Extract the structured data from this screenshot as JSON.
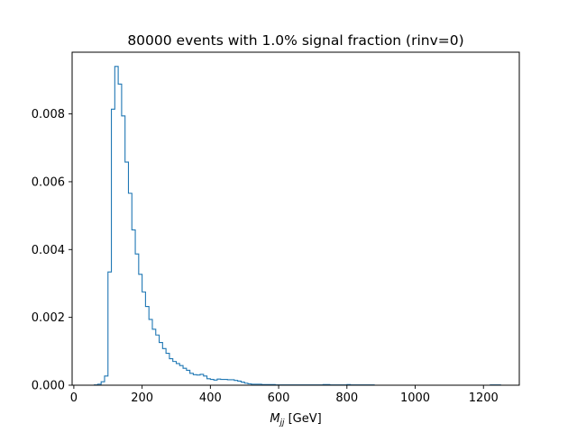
{
  "chart_data": {
    "type": "histogram",
    "title": "80000 events with 1.0% signal fraction (rinv=0)",
    "xlabel_var": "M",
    "xlabel_sub": "jj",
    "xlabel_unit": "[GeV]",
    "ylabel": "",
    "xlim": [
      -5,
      1305
    ],
    "ylim": [
      0,
      0.00982
    ],
    "x_ticks": [
      0,
      200,
      400,
      600,
      800,
      1000,
      1200
    ],
    "x_tick_labels": [
      "0",
      "200",
      "400",
      "600",
      "800",
      "1000",
      "1200"
    ],
    "y_ticks": [
      0.0,
      0.002,
      0.004,
      0.006,
      0.008
    ],
    "y_tick_labels": [
      "0.000",
      "0.002",
      "0.004",
      "0.006",
      "0.008"
    ],
    "grid": false,
    "legend": "none",
    "series": [
      {
        "color": "#1f77b4",
        "histtype": "step",
        "bin_edges": [
          60,
          70,
          80,
          90,
          100,
          110,
          120,
          130,
          140,
          150,
          160,
          170,
          180,
          190,
          200,
          210,
          220,
          230,
          240,
          250,
          260,
          270,
          280,
          290,
          300,
          310,
          320,
          330,
          340,
          350,
          360,
          370,
          380,
          390,
          400,
          410,
          420,
          430,
          440,
          450,
          460,
          470,
          480,
          490,
          500,
          510,
          520,
          530,
          540,
          550,
          560,
          570,
          580,
          590,
          600,
          610,
          620,
          630,
          640,
          650,
          660,
          670,
          680,
          690,
          700,
          710,
          720,
          730,
          740,
          750,
          760,
          770,
          780,
          790,
          800,
          810,
          820,
          830,
          840,
          850,
          860,
          870,
          880,
          890,
          900,
          910,
          920,
          930,
          940,
          950,
          960,
          970,
          980,
          990,
          1000,
          1010,
          1020,
          1030,
          1040,
          1050,
          1060,
          1070,
          1080,
          1090,
          1100,
          1110,
          1120,
          1130,
          1140,
          1150,
          1160,
          1170,
          1180,
          1190,
          1200,
          1210,
          1220,
          1230,
          1240,
          1250
        ],
        "values": [
          1e-05,
          3e-05,
          0.0001,
          0.00027,
          0.00334,
          0.00814,
          0.0094,
          0.00888,
          0.00794,
          0.00658,
          0.00566,
          0.00458,
          0.00387,
          0.00327,
          0.00275,
          0.00232,
          0.00194,
          0.00165,
          0.00148,
          0.00126,
          0.00108,
          0.00094,
          0.00078,
          0.0007,
          0.00064,
          0.00058,
          0.0005,
          0.00044,
          0.00035,
          0.00031,
          0.0003,
          0.00032,
          0.00027,
          0.00019,
          0.00017,
          0.00015,
          0.00018,
          0.00017,
          0.00017,
          0.00016,
          0.00016,
          0.00014,
          0.00012,
          9e-05,
          6e-05,
          4e-05,
          3e-05,
          3e-05,
          3e-05,
          2e-05,
          2e-05,
          2e-05,
          2e-05,
          1e-05,
          1e-05,
          1e-05,
          1e-05,
          1e-05,
          1e-05,
          1e-05,
          1e-05,
          1e-05,
          1e-05,
          1e-05,
          1e-05,
          1e-05,
          1e-05,
          2e-05,
          2e-05,
          1e-05,
          1e-05,
          1e-05,
          1e-05,
          1e-05,
          2e-05,
          1e-05,
          1e-05,
          1e-05,
          1e-05,
          1e-05,
          1e-05,
          1e-05,
          0.0,
          0.0,
          0.0,
          0.0,
          0.0,
          0.0,
          0.0,
          0.0,
          0.0,
          0.0,
          0.0,
          0.0,
          0.0,
          0.0,
          0.0,
          0.0,
          0.0,
          0.0,
          0.0,
          0.0,
          0.0,
          0.0,
          0.0,
          0.0,
          0.0,
          0.0,
          0.0,
          0.0,
          0.0,
          0.0,
          0.0,
          0.0,
          0.0,
          0.0,
          1e-05,
          1e-05,
          1e-05
        ]
      }
    ]
  }
}
